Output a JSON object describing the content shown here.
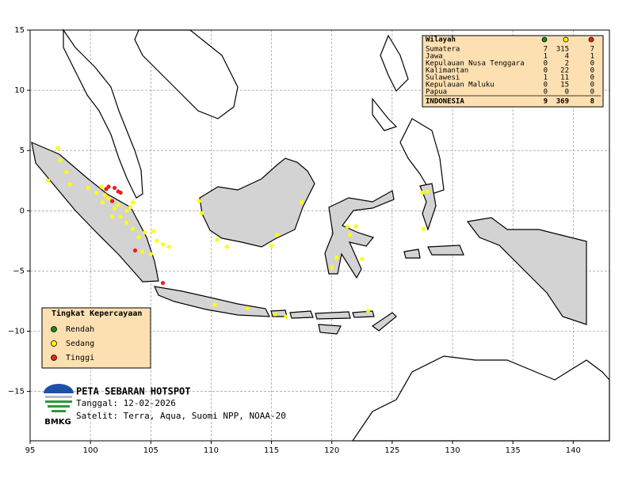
{
  "chart_data": {
    "type": "scatter",
    "xlim": [
      95,
      143
    ],
    "ylim": [
      -19.1,
      15
    ],
    "xticks": [
      95,
      100,
      105,
      110,
      115,
      120,
      125,
      130,
      135,
      140
    ],
    "yticks": [
      {
        "value": -15,
        "label": "−15"
      },
      {
        "value": -10,
        "label": "−10"
      },
      {
        "value": -5,
        "label": "−5"
      },
      0,
      5,
      10,
      15
    ],
    "grid": true,
    "legend_title": "Tingkat Kepercayaan",
    "series": [
      {
        "name": "Rendah",
        "color": "#1a8a1a",
        "x": [],
        "y": []
      },
      {
        "name": "Sedang",
        "color": "#ffff00",
        "x": [
          96.5,
          97.3,
          97.5,
          98.0,
          98.3,
          99.8,
          100.5,
          100.9,
          101.2,
          101.5,
          101.0,
          102.0,
          102.5,
          103.0,
          103.3,
          103.5,
          103.0,
          103.5,
          104.0,
          104.3,
          104.5,
          105.2,
          105.5,
          106.0,
          106.5,
          105.0,
          101.8,
          102.3,
          109.0,
          109.2,
          110.5,
          111.3,
          115.5,
          115.0,
          117.5,
          110.3,
          113.0,
          115.3,
          116.2,
          120.0,
          120.4,
          121.3,
          121.5,
          122.0,
          122.5,
          123.0,
          127.5,
          127.9,
          127.6
        ],
        "y": [
          2.5,
          5.2,
          4.2,
          3.2,
          2.2,
          1.9,
          1.5,
          2.0,
          1.3,
          1.0,
          0.7,
          0.2,
          -0.5,
          0.0,
          0.3,
          0.7,
          -1.0,
          -1.5,
          -2.2,
          -3.4,
          -1.8,
          -1.7,
          -2.5,
          -2.8,
          -3.0,
          -3.6,
          -0.5,
          0.5,
          0.8,
          -0.2,
          -2.4,
          -3.0,
          -2.0,
          -2.9,
          0.7,
          -7.8,
          -8.1,
          -8.6,
          -8.8,
          -4.7,
          -3.9,
          -1.3,
          -2.0,
          -1.3,
          -4.0,
          -8.3,
          1.5,
          1.6,
          -1.5
        ]
      },
      {
        "name": "Tinggi",
        "color": "#e8231a",
        "x": [
          101.5,
          102.0,
          102.3,
          101.8,
          102.5,
          101.3,
          103.7,
          106.0
        ],
        "y": [
          2.0,
          1.9,
          1.6,
          0.8,
          1.5,
          1.8,
          -3.3,
          -6.0
        ]
      }
    ]
  },
  "summary_table": {
    "header": "Wilayah",
    "rows": [
      {
        "region": "Sumatera",
        "counts": [
          7,
          315,
          7
        ]
      },
      {
        "region": "Jawa",
        "counts": [
          1,
          4,
          1
        ]
      },
      {
        "region": "Kepulauan Nusa Tenggara",
        "counts": [
          0,
          2,
          0
        ]
      },
      {
        "region": "Kalimantan",
        "counts": [
          0,
          22,
          0
        ]
      },
      {
        "region": "Sulawesi",
        "counts": [
          1,
          11,
          0
        ]
      },
      {
        "region": "Kepulauan Maluku",
        "counts": [
          0,
          15,
          0
        ]
      },
      {
        "region": "Papua",
        "counts": [
          0,
          0,
          0
        ]
      }
    ],
    "total": {
      "region": "INDONESIA",
      "counts": [
        9,
        369,
        8
      ]
    }
  },
  "map_title": "PETA SEBARAN HOTSPOT",
  "date": "Tanggal: 12-02-2026",
  "satellite": "Satelit: Terra, Aqua, Suomi NPP, NOAA-20",
  "logo_text": "BMKG"
}
